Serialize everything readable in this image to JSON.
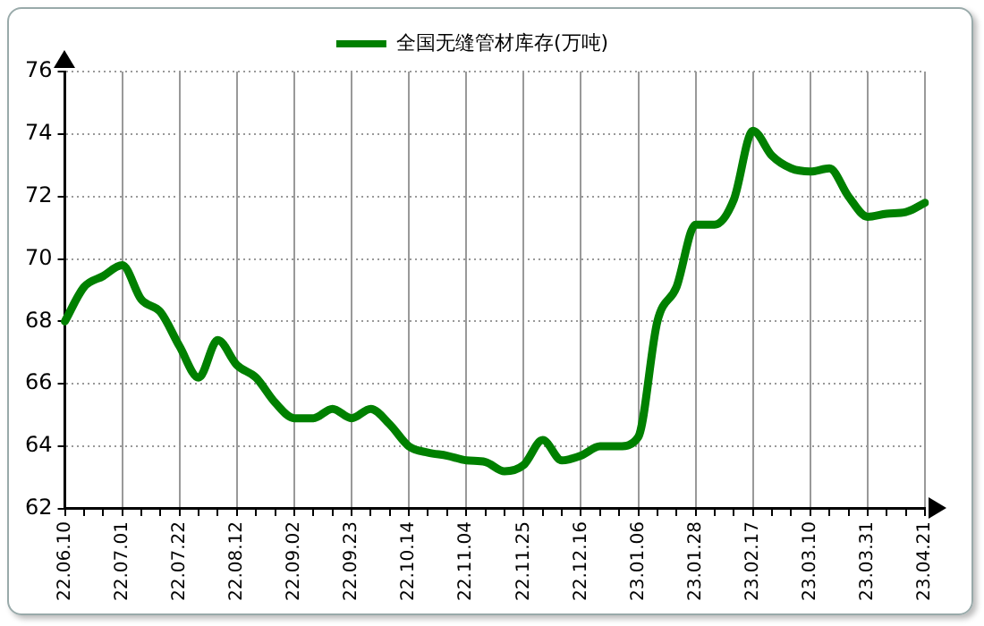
{
  "chart_data": {
    "type": "line",
    "legend": "top",
    "grid": true,
    "marker": "none",
    "line_style": "solid",
    "categories": [
      "22.06.10",
      null,
      null,
      "22.07.01",
      null,
      null,
      "22.07.22",
      null,
      null,
      "22.08.12",
      null,
      null,
      "22.09.02",
      null,
      null,
      "22.09.23",
      null,
      null,
      "22.10.14",
      null,
      null,
      "22.11.04",
      null,
      null,
      "22.11.25",
      null,
      null,
      "22.12.16",
      null,
      null,
      "23.01.06",
      null,
      null,
      "23.01.28",
      null,
      null,
      "23.02.17",
      null,
      null,
      "23.03.10",
      null,
      null,
      "23.03.31",
      null,
      null,
      "23.04.21"
    ],
    "ylim": [
      62,
      76
    ],
    "yticks": [
      62,
      64,
      66,
      68,
      70,
      72,
      74,
      76
    ],
    "series": [
      {
        "name": "全国无缝管材库存(万吨)",
        "color": "#008000",
        "values": [
          68.0,
          69.1,
          69.45,
          69.8,
          68.7,
          68.3,
          67.2,
          66.2,
          67.4,
          66.6,
          66.2,
          65.4,
          64.9,
          64.9,
          65.2,
          64.9,
          65.2,
          64.7,
          64.0,
          63.8,
          63.7,
          63.55,
          63.5,
          63.2,
          63.4,
          64.2,
          63.55,
          63.7,
          64.0,
          64.0,
          64.3,
          68.0,
          69.1,
          71.1,
          71.1,
          71.9,
          74.1,
          73.3,
          72.9,
          72.8,
          72.9,
          72.0,
          71.35,
          71.45,
          71.5,
          71.8
        ]
      }
    ]
  }
}
